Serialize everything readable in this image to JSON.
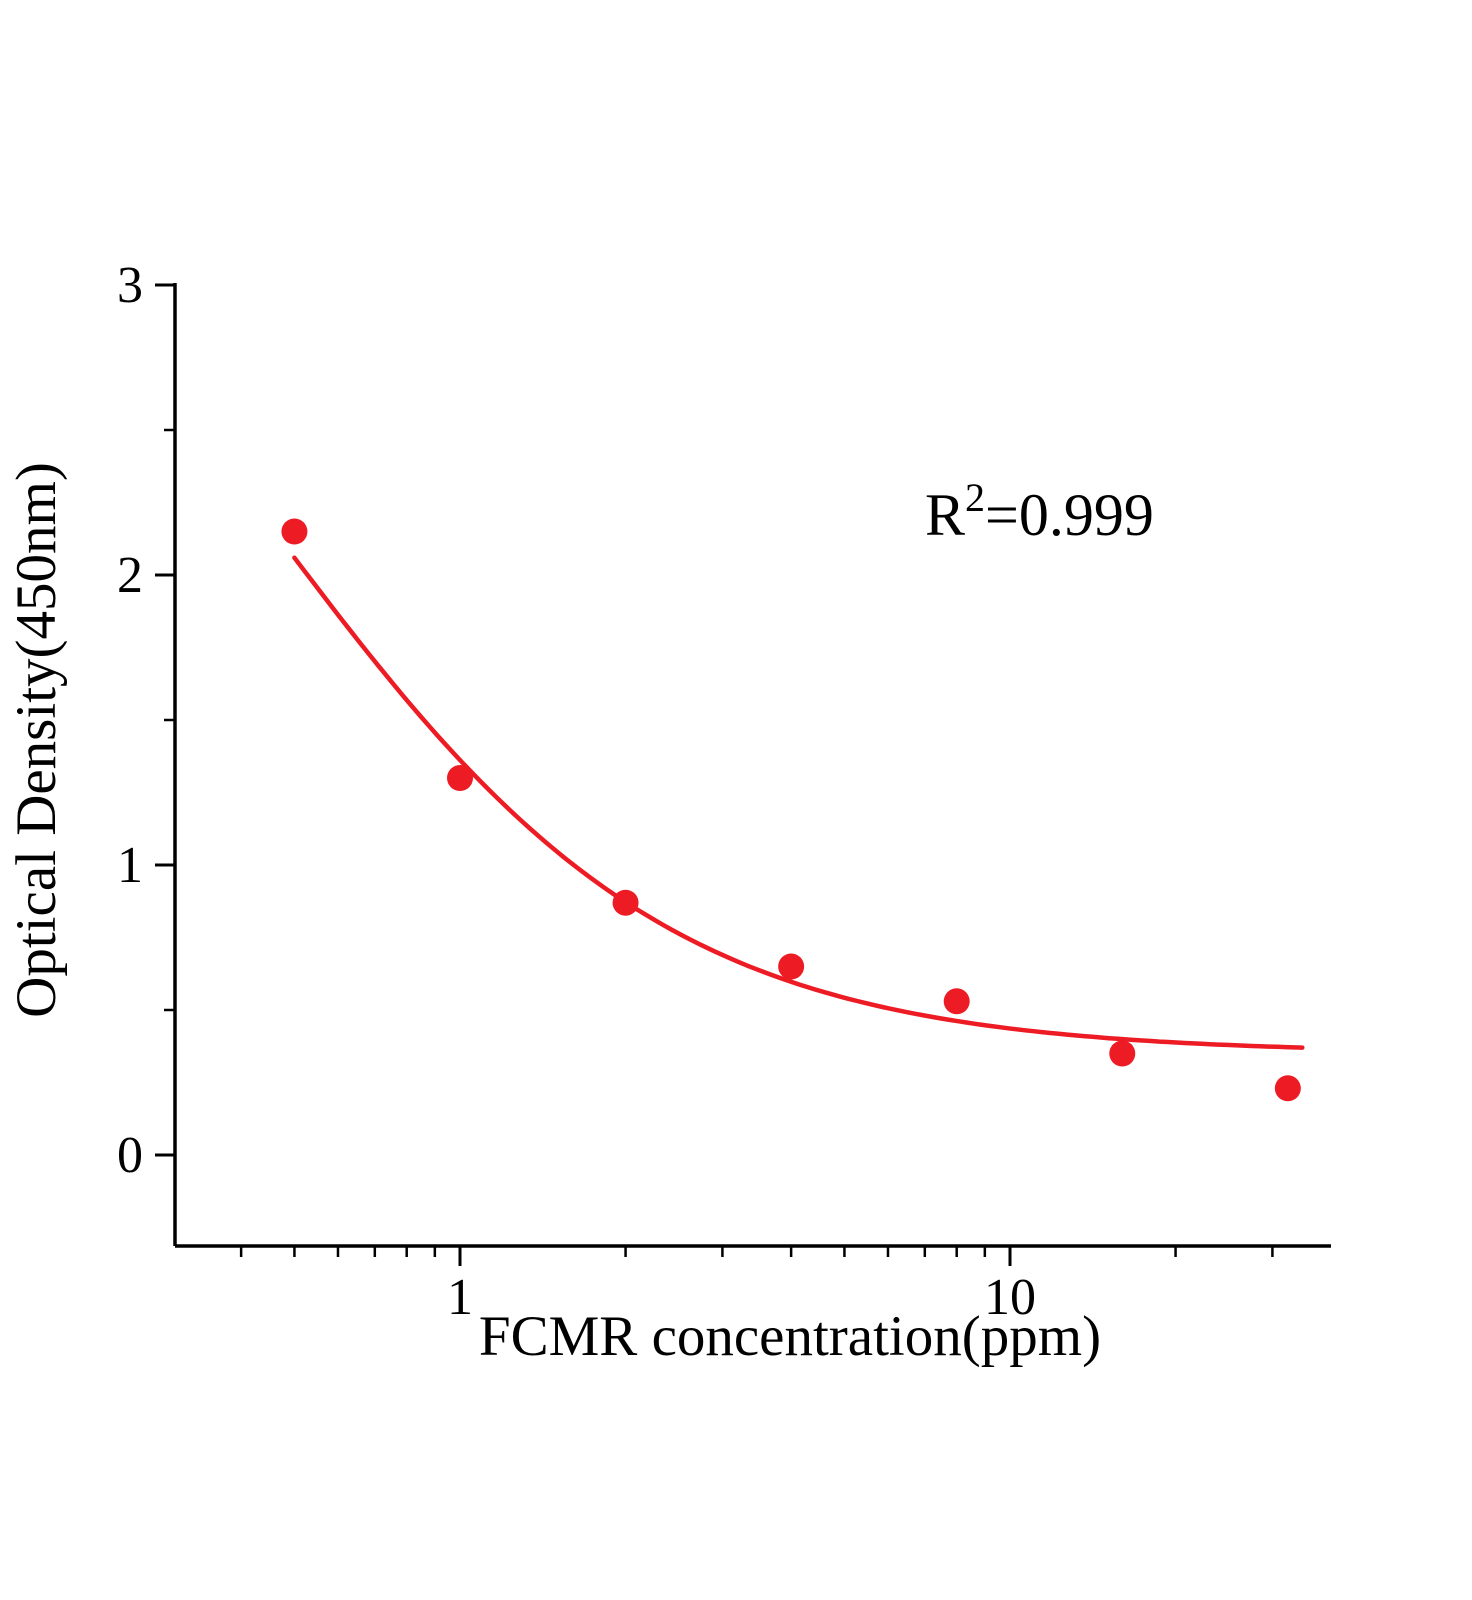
{
  "chart_data": {
    "type": "scatter",
    "title": "",
    "xlabel": "FCMR  concentration(ppm)",
    "ylabel": "Optical Density(450nm)",
    "annotation": {
      "base": "R",
      "exponent": "2",
      "rest": "=0.999"
    },
    "x_scale": "log",
    "x_range": [
      0.3,
      38
    ],
    "y_range": [
      -0.31,
      3
    ],
    "x_major_ticks": [
      {
        "value": 1,
        "label": "1"
      },
      {
        "value": 10,
        "label": "10"
      }
    ],
    "x_minor_ticks": [
      0.4,
      0.5,
      0.6,
      0.7,
      0.8,
      0.9,
      2,
      3,
      4,
      5,
      6,
      7,
      8,
      9,
      20,
      30
    ],
    "y_major_ticks": [
      {
        "value": 0,
        "label": "0"
      },
      {
        "value": 1,
        "label": "1"
      },
      {
        "value": 2,
        "label": "2"
      },
      {
        "value": 3,
        "label": "3"
      }
    ],
    "y_minor_ticks": [
      0.5,
      1.5,
      2.5
    ],
    "points": {
      "x": [
        0.5,
        1,
        2,
        4,
        8,
        16,
        32
      ],
      "y": [
        2.15,
        1.3,
        0.87,
        0.65,
        0.53,
        0.35,
        0.23
      ]
    },
    "fit": {
      "model": "4PL",
      "a": 4.0,
      "b": 1.2,
      "c": 0.45,
      "d": 0.35,
      "x_start": 0.5,
      "x_end": 34,
      "r_squared": 0.999
    },
    "grid": "off",
    "legend": "none",
    "colors": {
      "series": "#ed1c24",
      "axis": "#000000"
    }
  }
}
